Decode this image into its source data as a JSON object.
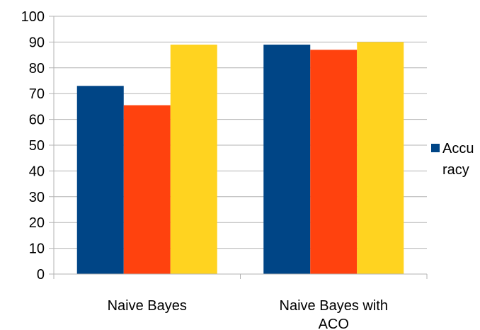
{
  "chart_data": {
    "type": "bar",
    "categories": [
      "Naive Bayes",
      "Naive Bayes with ACO"
    ],
    "category_label_lines": [
      [
        "Naive Bayes"
      ],
      [
        "Naive Bayes with",
        "ACO"
      ]
    ],
    "series": [
      {
        "name": "Accuracy",
        "values": [
          73,
          89
        ],
        "color": "#004586"
      },
      {
        "values": [
          65.5,
          87
        ],
        "color": "#ff420e"
      },
      {
        "values": [
          89,
          90
        ],
        "color": "#ffd320"
      }
    ],
    "ylim": [
      0,
      100
    ],
    "yticks": [
      0,
      10,
      20,
      30,
      40,
      50,
      60,
      70,
      80,
      90,
      100
    ],
    "legend": {
      "position": "right",
      "label_lines": [
        "Accu",
        "racy"
      ]
    },
    "grid": true,
    "gridline_color": "#b3b3b3"
  }
}
